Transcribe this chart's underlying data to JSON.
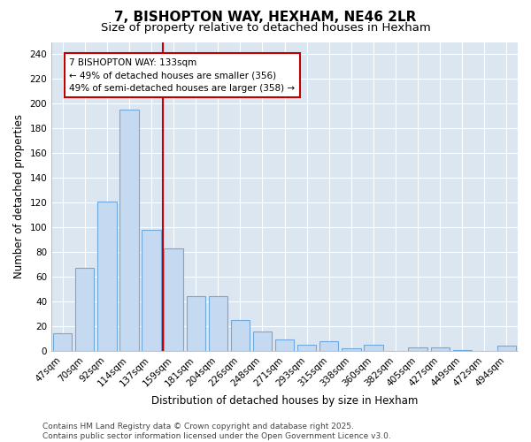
{
  "title": "7, BISHOPTON WAY, HEXHAM, NE46 2LR",
  "subtitle": "Size of property relative to detached houses in Hexham",
  "xlabel": "Distribution of detached houses by size in Hexham",
  "ylabel": "Number of detached properties",
  "bar_labels": [
    "47sqm",
    "70sqm",
    "92sqm",
    "114sqm",
    "137sqm",
    "159sqm",
    "181sqm",
    "204sqm",
    "226sqm",
    "248sqm",
    "271sqm",
    "293sqm",
    "315sqm",
    "338sqm",
    "360sqm",
    "382sqm",
    "405sqm",
    "427sqm",
    "449sqm",
    "472sqm",
    "494sqm"
  ],
  "bar_values": [
    14,
    67,
    121,
    195,
    98,
    83,
    44,
    44,
    25,
    16,
    9,
    5,
    8,
    2,
    5,
    0,
    3,
    3,
    1,
    0,
    4
  ],
  "bar_color": "#c5d9f0",
  "bar_edge_color": "#6fa8dc",
  "vline_x": 4.5,
  "vline_color": "#c00000",
  "annotation_text": "7 BISHOPTON WAY: 133sqm\n← 49% of detached houses are smaller (356)\n49% of semi-detached houses are larger (358) →",
  "annotation_box_color": "#ffffff",
  "annotation_box_edge": "#c00000",
  "ylim": [
    0,
    250
  ],
  "yticks": [
    0,
    20,
    40,
    60,
    80,
    100,
    120,
    140,
    160,
    180,
    200,
    220,
    240
  ],
  "footer": "Contains HM Land Registry data © Crown copyright and database right 2025.\nContains public sector information licensed under the Open Government Licence v3.0.",
  "fig_bg_color": "#ffffff",
  "plot_bg_color": "#dce6f1",
  "grid_color": "#ffffff",
  "title_fontsize": 11,
  "subtitle_fontsize": 9.5,
  "label_fontsize": 8.5,
  "tick_fontsize": 7.5,
  "footer_fontsize": 6.5,
  "annotation_fontsize": 7.5
}
